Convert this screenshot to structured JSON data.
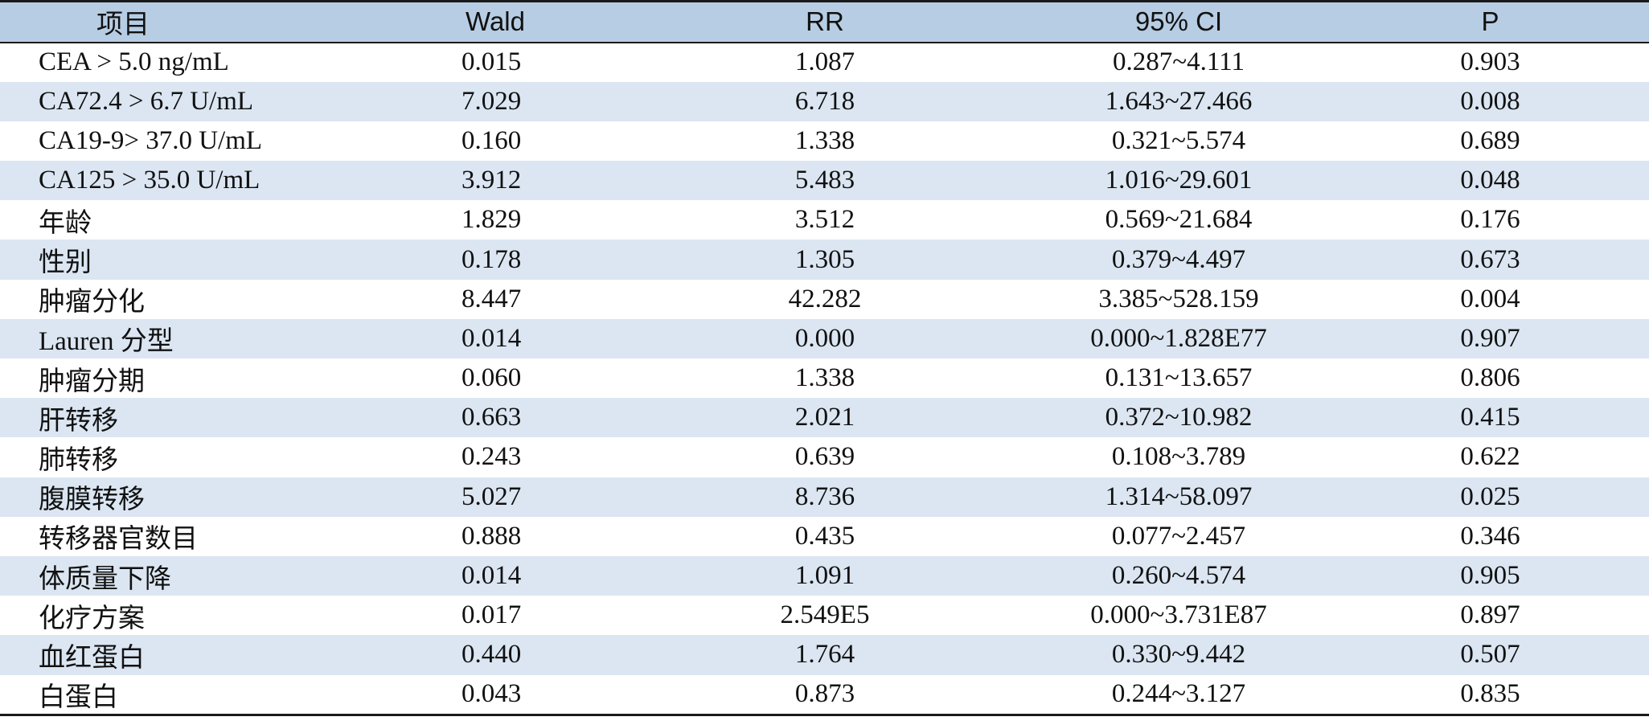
{
  "table": {
    "headers": [
      "项目",
      "Wald",
      "RR",
      "95% CI",
      "P"
    ],
    "rows": [
      [
        "CEA > 5.0 ng/mL",
        "0.015",
        "1.087",
        "0.287~4.111",
        "0.903"
      ],
      [
        "CA72.4 > 6.7 U/mL",
        "7.029",
        "6.718",
        "1.643~27.466",
        "0.008"
      ],
      [
        "CA19-9> 37.0 U/mL",
        "0.160",
        "1.338",
        "0.321~5.574",
        "0.689"
      ],
      [
        "CA125 > 35.0 U/mL",
        "3.912",
        "5.483",
        "1.016~29.601",
        "0.048"
      ],
      [
        "年龄",
        "1.829",
        "3.512",
        "0.569~21.684",
        "0.176"
      ],
      [
        "性别",
        "0.178",
        "1.305",
        "0.379~4.497",
        "0.673"
      ],
      [
        "肿瘤分化",
        "8.447",
        "42.282",
        "3.385~528.159",
        "0.004"
      ],
      [
        "Lauren 分型",
        "0.014",
        "0.000",
        "0.000~1.828E77",
        "0.907"
      ],
      [
        "肿瘤分期",
        "0.060",
        "1.338",
        "0.131~13.657",
        "0.806"
      ],
      [
        "肝转移",
        "0.663",
        "2.021",
        "0.372~10.982",
        "0.415"
      ],
      [
        "肺转移",
        "0.243",
        "0.639",
        "0.108~3.789",
        "0.622"
      ],
      [
        "腹膜转移",
        "5.027",
        "8.736",
        "1.314~58.097",
        "0.025"
      ],
      [
        "转移器官数目",
        "0.888",
        "0.435",
        "0.077~2.457",
        "0.346"
      ],
      [
        "体质量下降",
        "0.014",
        "1.091",
        "0.260~4.574",
        "0.905"
      ],
      [
        "化疗方案",
        "0.017",
        "2.549E5",
        "0.000~3.731E87",
        "0.897"
      ],
      [
        "血红蛋白",
        "0.440",
        "1.764",
        "0.330~9.442",
        "0.507"
      ],
      [
        "白蛋白",
        "0.043",
        "0.873",
        "0.244~3.127",
        "0.835"
      ]
    ]
  }
}
